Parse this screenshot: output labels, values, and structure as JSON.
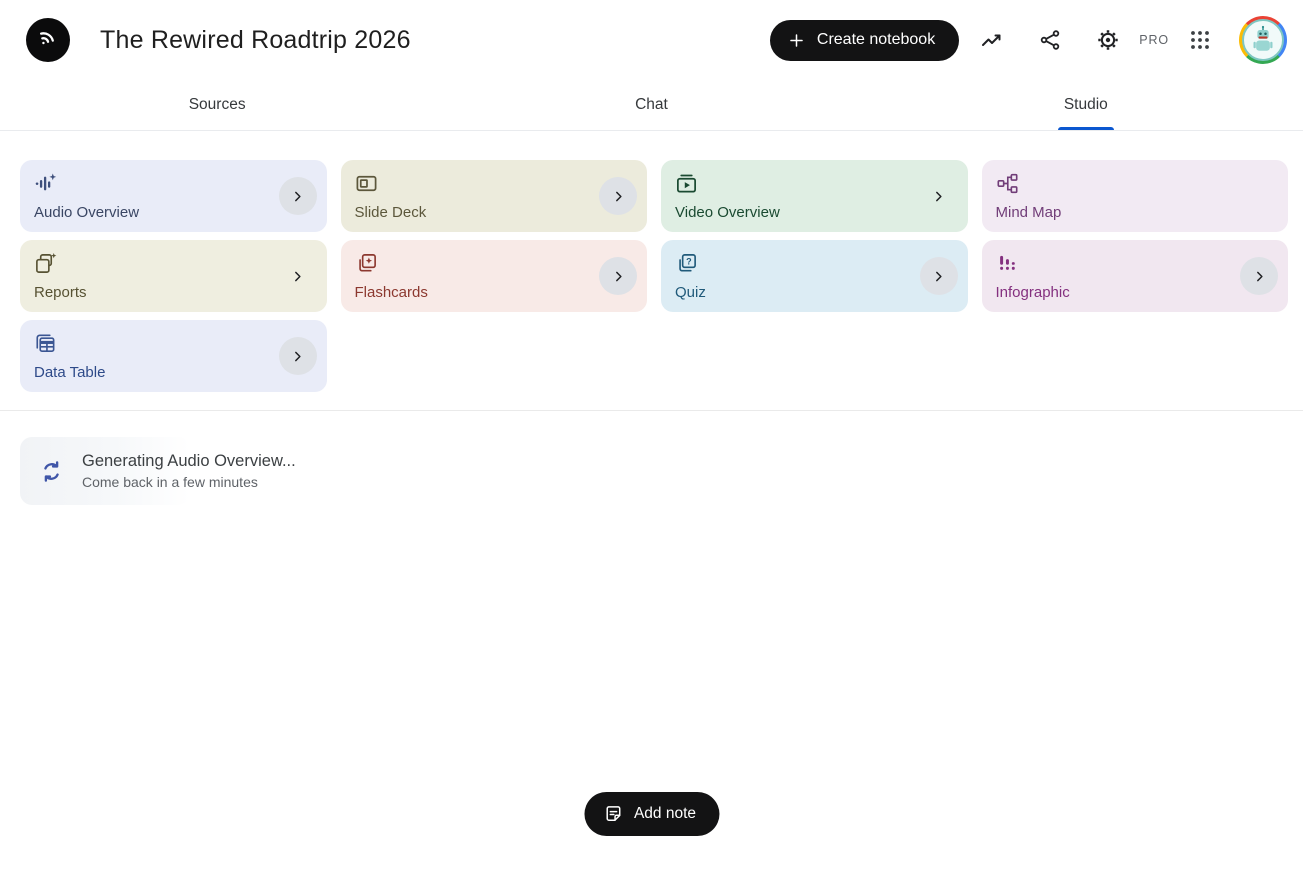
{
  "header": {
    "logo_icon": "notebooklm-logo",
    "title": "The Rewired Roadtrip 2026",
    "create_button_label": "Create notebook",
    "pro_badge": "PRO"
  },
  "tabs": [
    {
      "label": "Sources",
      "active": false
    },
    {
      "label": "Chat",
      "active": false
    },
    {
      "label": "Studio",
      "active": true
    }
  ],
  "studio": {
    "cards": [
      {
        "label": "Audio Overview",
        "icon": "audio-overview-waveform-icon",
        "bg": "#e9ecf8",
        "fg": "#3a4664",
        "icon_color": "#3e4f7c",
        "chevron": "circle"
      },
      {
        "label": "Slide Deck",
        "icon": "slide-deck-icon",
        "bg": "#ecebdc",
        "fg": "#5c573b",
        "icon_color": "#5c573b",
        "chevron": "circle"
      },
      {
        "label": "Video Overview",
        "icon": "video-overview-icon",
        "bg": "#dfeee3",
        "fg": "#1a4a31",
        "icon_color": "#1a4a31",
        "chevron": "plain"
      },
      {
        "label": "Mind Map",
        "icon": "mind-map-icon",
        "bg": "#f2eaf3",
        "fg": "#713d78",
        "icon_color": "#713d78",
        "chevron": "none"
      },
      {
        "label": "Reports",
        "icon": "reports-sparkle-icon",
        "bg": "#efeee0",
        "fg": "#575233",
        "icon_color": "#575233",
        "chevron": "plain"
      },
      {
        "label": "Flashcards",
        "icon": "flashcards-star-icon",
        "bg": "#f8eae7",
        "fg": "#8c382f",
        "icon_color": "#8c382f",
        "chevron": "circle"
      },
      {
        "label": "Quiz",
        "icon": "quiz-cards-icon",
        "bg": "#dcecf4",
        "fg": "#205a7a",
        "icon_color": "#205a7a",
        "chevron": "circle"
      },
      {
        "label": "Infographic",
        "icon": "infographic-bars-icon",
        "bg": "#f1e7f0",
        "fg": "#84307f",
        "icon_color": "#84307f",
        "chevron": "circle"
      },
      {
        "label": "Data Table",
        "icon": "data-table-icon",
        "bg": "#e9ecf8",
        "fg": "#2e4a89",
        "icon_color": "#3b5693",
        "chevron": "circle"
      }
    ],
    "status": {
      "icon": "sync-icon",
      "title": "Generating Audio Overview...",
      "subtitle": "Come back in a few minutes"
    },
    "add_note_label": "Add note"
  },
  "colors": {
    "accent_blue": "#0b57d0",
    "pill_black": "#131314",
    "chevron_circle_gray": "#dee1e6",
    "sync_blue": "#4056a8",
    "pro_gray": "#5f6368"
  }
}
